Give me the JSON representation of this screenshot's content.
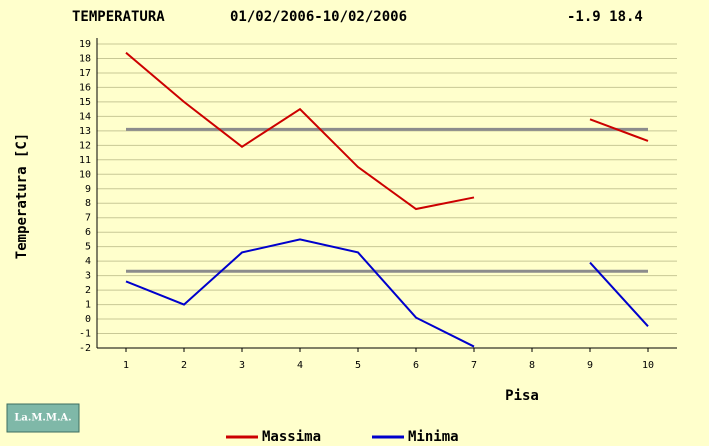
{
  "chart_data": {
    "type": "line",
    "title": "TEMPERATURA",
    "subtitle": "01/02/2006-10/02/2006",
    "range_label": "-1.9 18.4",
    "ylabel": "Temperatura [C]",
    "xlabel": "Pisa",
    "logo": "La.M.M.A.",
    "x": [
      1,
      2,
      3,
      4,
      5,
      6,
      7,
      8,
      9,
      10
    ],
    "series": [
      {
        "name": "Massima",
        "color": "#cc0000",
        "values": [
          18.4,
          15.0,
          11.9,
          14.5,
          10.5,
          7.6,
          8.4,
          null,
          13.8,
          12.3
        ]
      },
      {
        "name": "Minima",
        "color": "#0000cc",
        "values": [
          2.6,
          1.0,
          4.6,
          5.5,
          4.6,
          0.1,
          -1.9,
          null,
          3.9,
          -0.5
        ]
      }
    ],
    "reference_lines": {
      "color": "#8c8c8c",
      "values": [
        13.1,
        3.3
      ]
    },
    "xlim": [
      0.5,
      10.5
    ],
    "xticks": [
      1,
      2,
      3,
      4,
      5,
      6,
      7,
      8,
      9,
      10
    ],
    "ylim": [
      -2,
      19
    ],
    "yticks": [
      -2,
      -1,
      0,
      1,
      2,
      3,
      4,
      5,
      6,
      7,
      8,
      9,
      10,
      11,
      12,
      13,
      14,
      15,
      16,
      17,
      18,
      19
    ],
    "grid": true
  }
}
